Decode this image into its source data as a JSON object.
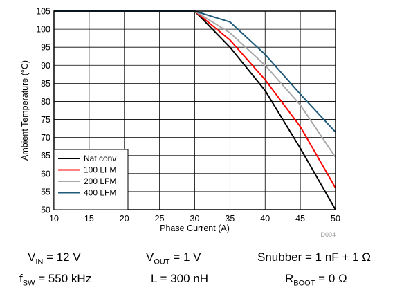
{
  "chart_data": {
    "type": "line",
    "xlabel": "Phase Current (A)",
    "ylabel": "Ambient Temperature (°C)",
    "xlim": [
      10,
      50
    ],
    "ylim": [
      50,
      105
    ],
    "xticks": [
      10,
      15,
      20,
      25,
      30,
      35,
      40,
      45,
      50
    ],
    "yticks": [
      50,
      55,
      60,
      65,
      70,
      75,
      80,
      85,
      90,
      95,
      100,
      105
    ],
    "grid": true,
    "legend_position": "bottom-left",
    "figure_id": "D004",
    "series": [
      {
        "name": "Nat conv",
        "color": "#000000",
        "x": [
          10,
          30,
          35,
          40,
          45,
          50
        ],
        "y": [
          105,
          105,
          95,
          83,
          67,
          50
        ]
      },
      {
        "name": "100 LFM",
        "color": "#ff0000",
        "x": [
          10,
          30,
          35,
          40,
          45,
          50
        ],
        "y": [
          105,
          105,
          97,
          86,
          73,
          56
        ]
      },
      {
        "name": "200 LFM",
        "color": "#a8a8a8",
        "x": [
          10,
          30,
          35,
          40,
          45,
          50
        ],
        "y": [
          105,
          105,
          99,
          90,
          79,
          64.5
        ]
      },
      {
        "name": "400 LFM",
        "color": "#1f5a7a",
        "x": [
          10,
          30,
          35,
          40,
          45,
          50
        ],
        "y": [
          105,
          105,
          102,
          93,
          82,
          71.5
        ]
      }
    ]
  },
  "conditions": {
    "vin": {
      "sym": "V",
      "sub": "IN",
      "val": " = 12 V"
    },
    "vout": {
      "sym": "V",
      "sub": "OUT",
      "val": " = 1 V"
    },
    "snubber": {
      "text": "Snubber = 1 nF + 1 Ω"
    },
    "fsw": {
      "sym": "f",
      "sub": "SW",
      "val": " = 550 kHz"
    },
    "ind": {
      "text": "L = 300 nH"
    },
    "rboot": {
      "sym": "R",
      "sub": "BOOT",
      "val": " = 0 Ω"
    }
  }
}
